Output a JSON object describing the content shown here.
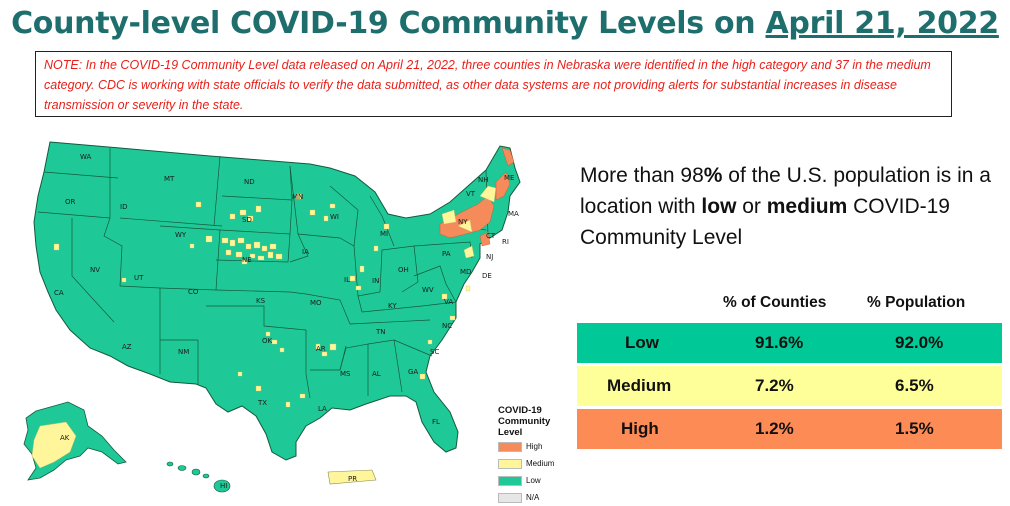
{
  "title": {
    "prefix": "County-level COVID-19 Community Levels on ",
    "date": "April 21, 2022"
  },
  "note": "NOTE: In the COVID-19 Community Level data released on April 21, 2022, three counties in Nebraska were identified in the high category and 37 in the medium category. CDC is working with state officials to verify the data submitted, as other data systems are not providing alerts for substantial increases in disease transmission or severity in the state.",
  "summary": {
    "part1": "More than 98",
    "pct": "%",
    "part2": " of the U.S. population is in a location with ",
    "low": "low",
    "or": " or ",
    "medium": "medium",
    "part3": " COVID-19 Community Level"
  },
  "table": {
    "headers": [
      "% of Counties",
      "% Population"
    ],
    "rows": [
      {
        "level": "Low",
        "counties": "91.6%",
        "population": "92.0%",
        "color": "#00c896"
      },
      {
        "level": "Medium",
        "counties": "7.2%",
        "population": "6.5%",
        "color": "#ffff99"
      },
      {
        "level": "High",
        "counties": "1.2%",
        "population": "1.5%",
        "color": "#fd8b55"
      }
    ]
  },
  "legend": {
    "title": "COVID-19 Community Level",
    "items": [
      {
        "label": "High",
        "color": "#f58a5a"
      },
      {
        "label": "Medium",
        "color": "#fff59a"
      },
      {
        "label": "Low",
        "color": "#1ec997"
      },
      {
        "label": "N/A",
        "color": "#e6e6e6"
      }
    ]
  },
  "map": {
    "colors": {
      "low": "#1ec997",
      "medium": "#fff59a",
      "high": "#f58a5a",
      "border": "#145a3c"
    },
    "state_labels": [
      "WA",
      "OR",
      "CA",
      "ID",
      "NV",
      "MT",
      "WY",
      "UT",
      "AZ",
      "CO",
      "NM",
      "ND",
      "SD",
      "NE",
      "KS",
      "OK",
      "TX",
      "MN",
      "IA",
      "MO",
      "AR",
      "LA",
      "WI",
      "IL",
      "MI",
      "IN",
      "OH",
      "KY",
      "TN",
      "MS",
      "AL",
      "GA",
      "FL",
      "SC",
      "NC",
      "VA",
      "WV",
      "PA",
      "NY",
      "ME",
      "VT",
      "NH",
      "MA",
      "RI",
      "CT",
      "NJ",
      "DE",
      "MD",
      "AK",
      "HI",
      "PR"
    ]
  }
}
